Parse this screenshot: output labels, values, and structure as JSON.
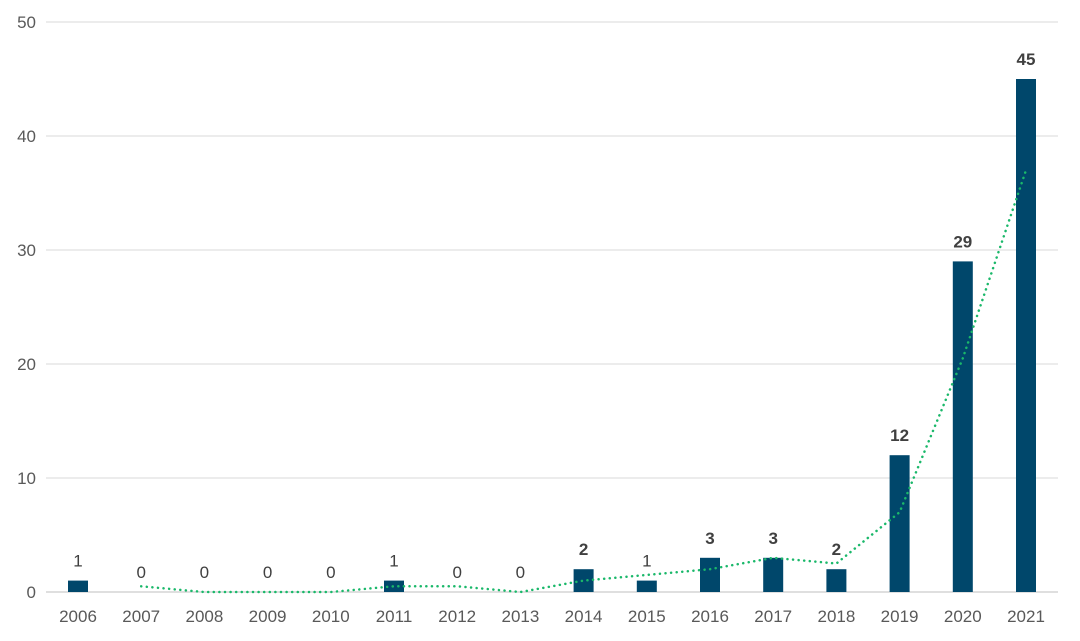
{
  "chart_data": {
    "type": "bar",
    "categories": [
      "2006",
      "2007",
      "2008",
      "2009",
      "2010",
      "2011",
      "2012",
      "2013",
      "2014",
      "2015",
      "2016",
      "2017",
      "2018",
      "2019",
      "2020",
      "2021"
    ],
    "values": [
      1,
      0,
      0,
      0,
      0,
      1,
      0,
      0,
      2,
      1,
      3,
      3,
      2,
      12,
      29,
      45
    ],
    "data_labels": [
      "1",
      "0",
      "0",
      "0",
      "0",
      "1",
      "0",
      "0",
      "2",
      "1",
      "3",
      "3",
      "2",
      "12",
      "29",
      "45"
    ],
    "trendline": {
      "type": "moving-average",
      "period": 2,
      "values": [
        null,
        0.5,
        0,
        0,
        0,
        0.5,
        0.5,
        0,
        1,
        1.5,
        2,
        3,
        2.5,
        7,
        20.5,
        37
      ],
      "style": "dotted"
    },
    "ylim": [
      0,
      50
    ],
    "yticks": [
      0,
      10,
      20,
      30,
      40,
      50
    ],
    "ytick_labels": [
      "0",
      "10",
      "20",
      "30",
      "40",
      "50"
    ],
    "grid": true,
    "legend": "none",
    "colors": {
      "bar": "#00476b",
      "trendline": "#1ab86a",
      "grid": "#d9d9d9",
      "tick_text": "#595959",
      "label_text": "#404040"
    }
  }
}
